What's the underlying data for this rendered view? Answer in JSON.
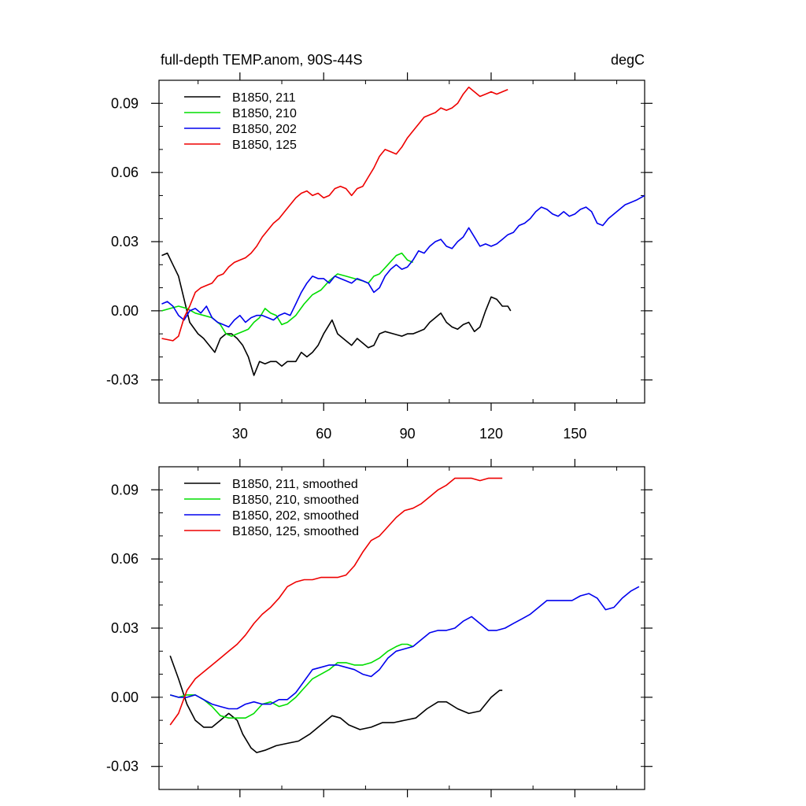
{
  "chart_data": [
    {
      "type": "line",
      "title": "full-depth TEMP.anom, 90S-44S",
      "units": "degC",
      "xlim": [
        1,
        175
      ],
      "ylim": [
        -0.04,
        0.1
      ],
      "xticks": [
        30,
        60,
        90,
        120,
        150
      ],
      "xtick_labels": [
        "30",
        "60",
        "90",
        "120",
        "150"
      ],
      "yticks": [
        -0.03,
        0.0,
        0.03,
        0.06,
        0.09
      ],
      "ytick_labels": [
        "-0.03",
        "0.00",
        "0.03",
        "0.06",
        "0.09"
      ],
      "legend_position": "top-left",
      "series": [
        {
          "name": "B1850, 211",
          "color": "#000000",
          "x": [
            2,
            4,
            6,
            8,
            10,
            12,
            15,
            17,
            19,
            21,
            23,
            25,
            27,
            29,
            31,
            33,
            35,
            37,
            39,
            41,
            43,
            45,
            47,
            50,
            52,
            54,
            56,
            58,
            60,
            62,
            63,
            65,
            67,
            70,
            72,
            74,
            76,
            78,
            80,
            82,
            85,
            88,
            90,
            92,
            94,
            96,
            98,
            100,
            102,
            104,
            106,
            108,
            110,
            112,
            114,
            116,
            118,
            120,
            122,
            124,
            126,
            127
          ],
          "y": [
            0.024,
            0.025,
            0.02,
            0.015,
            0.005,
            -0.005,
            -0.01,
            -0.012,
            -0.015,
            -0.018,
            -0.012,
            -0.01,
            -0.01,
            -0.012,
            -0.015,
            -0.02,
            -0.028,
            -0.022,
            -0.023,
            -0.022,
            -0.022,
            -0.024,
            -0.022,
            -0.022,
            -0.018,
            -0.02,
            -0.018,
            -0.015,
            -0.01,
            -0.006,
            -0.004,
            -0.01,
            -0.012,
            -0.015,
            -0.012,
            -0.014,
            -0.016,
            -0.015,
            -0.01,
            -0.009,
            -0.01,
            -0.011,
            -0.01,
            -0.01,
            -0.009,
            -0.008,
            -0.005,
            -0.003,
            -0.001,
            -0.005,
            -0.007,
            -0.008,
            -0.006,
            -0.005,
            -0.009,
            -0.007,
            0.0,
            0.006,
            0.005,
            0.002,
            0.002,
            0.0
          ]
        },
        {
          "name": "B1850, 210",
          "color": "#00dd00",
          "x": [
            2,
            5,
            8,
            11,
            14,
            17,
            20,
            23,
            25,
            27,
            29,
            31,
            33,
            35,
            37,
            39,
            41,
            43,
            45,
            47,
            50,
            53,
            56,
            59,
            62,
            65,
            68,
            71,
            74,
            76,
            78,
            80,
            83,
            86,
            88,
            90,
            92
          ],
          "y": [
            0.0,
            0.001,
            0.002,
            0.001,
            -0.001,
            -0.002,
            -0.003,
            -0.006,
            -0.01,
            -0.011,
            -0.01,
            -0.009,
            -0.008,
            -0.005,
            -0.003,
            0.001,
            -0.001,
            -0.002,
            -0.006,
            -0.005,
            -0.002,
            0.003,
            0.007,
            0.009,
            0.013,
            0.016,
            0.015,
            0.014,
            0.013,
            0.012,
            0.015,
            0.016,
            0.02,
            0.024,
            0.025,
            0.022,
            0.021
          ]
        },
        {
          "name": "B1850, 202",
          "color": "#0000ee",
          "x": [
            2,
            4,
            6,
            8,
            10,
            12,
            14,
            16,
            18,
            20,
            22,
            24,
            26,
            28,
            30,
            32,
            34,
            36,
            38,
            40,
            42,
            44,
            46,
            48,
            50,
            52,
            54,
            56,
            58,
            60,
            62,
            64,
            66,
            68,
            70,
            72,
            74,
            76,
            78,
            80,
            82,
            84,
            86,
            88,
            90,
            92,
            94,
            96,
            98,
            100,
            102,
            104,
            106,
            108,
            110,
            112,
            114,
            116,
            118,
            120,
            122,
            124,
            126,
            128,
            130,
            132,
            134,
            136,
            138,
            140,
            142,
            144,
            146,
            148,
            150,
            152,
            154,
            156,
            158,
            160,
            162,
            164,
            166,
            168,
            170,
            172,
            175
          ],
          "y": [
            0.003,
            0.004,
            0.002,
            -0.002,
            -0.004,
            0.0,
            0.001,
            -0.001,
            0.002,
            -0.003,
            -0.005,
            -0.006,
            -0.007,
            -0.004,
            -0.002,
            -0.005,
            -0.003,
            -0.002,
            -0.002,
            -0.003,
            -0.004,
            -0.002,
            -0.001,
            -0.002,
            0.003,
            0.008,
            0.012,
            0.015,
            0.014,
            0.014,
            0.012,
            0.015,
            0.014,
            0.013,
            0.012,
            0.014,
            0.013,
            0.012,
            0.008,
            0.01,
            0.015,
            0.018,
            0.02,
            0.018,
            0.019,
            0.022,
            0.026,
            0.025,
            0.028,
            0.03,
            0.031,
            0.028,
            0.027,
            0.03,
            0.032,
            0.036,
            0.032,
            0.028,
            0.029,
            0.028,
            0.029,
            0.031,
            0.033,
            0.034,
            0.037,
            0.038,
            0.04,
            0.043,
            0.045,
            0.044,
            0.042,
            0.041,
            0.043,
            0.041,
            0.042,
            0.044,
            0.045,
            0.043,
            0.038,
            0.037,
            0.04,
            0.042,
            0.044,
            0.046,
            0.047,
            0.048,
            0.05
          ]
        },
        {
          "name": "B1850, 125",
          "color": "#ee0000",
          "x": [
            2,
            6,
            8,
            10,
            12,
            14,
            16,
            18,
            20,
            22,
            24,
            26,
            28,
            30,
            32,
            34,
            36,
            38,
            40,
            42,
            44,
            46,
            48,
            50,
            52,
            54,
            56,
            58,
            60,
            62,
            64,
            66,
            68,
            70,
            72,
            74,
            76,
            78,
            80,
            82,
            84,
            86,
            88,
            90,
            92,
            94,
            96,
            98,
            100,
            102,
            104,
            106,
            108,
            110,
            112,
            114,
            116,
            118,
            120,
            122,
            124,
            126
          ],
          "y": [
            -0.012,
            -0.013,
            -0.011,
            -0.003,
            0.002,
            0.008,
            0.01,
            0.011,
            0.012,
            0.015,
            0.016,
            0.019,
            0.021,
            0.022,
            0.023,
            0.025,
            0.028,
            0.032,
            0.035,
            0.038,
            0.04,
            0.043,
            0.046,
            0.049,
            0.051,
            0.052,
            0.05,
            0.051,
            0.049,
            0.05,
            0.053,
            0.054,
            0.053,
            0.05,
            0.053,
            0.054,
            0.058,
            0.062,
            0.067,
            0.07,
            0.069,
            0.068,
            0.071,
            0.075,
            0.078,
            0.081,
            0.084,
            0.085,
            0.086,
            0.088,
            0.087,
            0.088,
            0.09,
            0.094,
            0.097,
            0.095,
            0.093,
            0.094,
            0.095,
            0.094,
            0.095,
            0.096
          ]
        }
      ]
    },
    {
      "type": "line",
      "title": "",
      "units": "",
      "xlim": [
        1,
        175
      ],
      "ylim": [
        -0.04,
        0.1
      ],
      "xticks": [
        30,
        60,
        90,
        120,
        150
      ],
      "xtick_labels": [],
      "yticks": [
        -0.03,
        0.0,
        0.03,
        0.06,
        0.09
      ],
      "ytick_labels": [
        "-0.03",
        "0.00",
        "0.03",
        "0.06",
        "0.09"
      ],
      "legend_position": "top-left",
      "series": [
        {
          "name": "B1850, 211, smoothed",
          "color": "#000000",
          "x": [
            5,
            8,
            11,
            14,
            17,
            20,
            23,
            26,
            29,
            31,
            34,
            36,
            39,
            43,
            47,
            51,
            55,
            59,
            63,
            66,
            69,
            73,
            77,
            81,
            85,
            89,
            93,
            97,
            101,
            104,
            108,
            112,
            116,
            120,
            123,
            124
          ],
          "y": [
            0.018,
            0.008,
            -0.003,
            -0.01,
            -0.013,
            -0.013,
            -0.01,
            -0.007,
            -0.01,
            -0.016,
            -0.022,
            -0.024,
            -0.023,
            -0.021,
            -0.02,
            -0.019,
            -0.016,
            -0.012,
            -0.008,
            -0.009,
            -0.012,
            -0.014,
            -0.013,
            -0.011,
            -0.011,
            -0.01,
            -0.009,
            -0.005,
            -0.002,
            -0.002,
            -0.005,
            -0.007,
            -0.006,
            0.0,
            0.003,
            0.003
          ]
        },
        {
          "name": "B1850, 210, smoothed",
          "color": "#00dd00",
          "x": [
            5,
            8,
            11,
            14,
            17,
            20,
            23,
            26,
            29,
            32,
            35,
            38,
            41,
            44,
            47,
            50,
            53,
            56,
            59,
            62,
            65,
            68,
            71,
            74,
            77,
            80,
            83,
            86,
            88,
            90,
            92
          ],
          "y": [
            0.001,
            0.0,
            0.001,
            0.001,
            -0.001,
            -0.004,
            -0.008,
            -0.009,
            -0.009,
            -0.009,
            -0.007,
            -0.003,
            -0.002,
            -0.004,
            -0.003,
            0.0,
            0.004,
            0.008,
            0.01,
            0.012,
            0.015,
            0.015,
            0.014,
            0.014,
            0.015,
            0.017,
            0.02,
            0.022,
            0.023,
            0.023,
            0.022
          ]
        },
        {
          "name": "B1850, 202, smoothed",
          "color": "#0000ee",
          "x": [
            5,
            8,
            11,
            14,
            17,
            20,
            23,
            26,
            29,
            32,
            35,
            38,
            41,
            44,
            47,
            50,
            53,
            56,
            59,
            62,
            65,
            68,
            71,
            74,
            77,
            80,
            83,
            86,
            89,
            92,
            95,
            98,
            101,
            104,
            107,
            110,
            113,
            116,
            119,
            122,
            125,
            128,
            131,
            134,
            137,
            140,
            143,
            146,
            149,
            152,
            155,
            158,
            161,
            164,
            167,
            170,
            173
          ],
          "y": [
            0.001,
            0.0,
            0.0,
            0.001,
            -0.001,
            -0.003,
            -0.004,
            -0.005,
            -0.005,
            -0.003,
            -0.002,
            -0.003,
            -0.003,
            -0.001,
            -0.001,
            0.002,
            0.007,
            0.012,
            0.013,
            0.014,
            0.014,
            0.013,
            0.012,
            0.01,
            0.009,
            0.012,
            0.017,
            0.02,
            0.021,
            0.022,
            0.025,
            0.028,
            0.029,
            0.029,
            0.03,
            0.033,
            0.035,
            0.032,
            0.029,
            0.029,
            0.03,
            0.032,
            0.034,
            0.036,
            0.039,
            0.042,
            0.042,
            0.042,
            0.042,
            0.044,
            0.045,
            0.043,
            0.038,
            0.039,
            0.043,
            0.046,
            0.048
          ]
        },
        {
          "name": "B1850, 125, smoothed",
          "color": "#ee0000",
          "x": [
            5,
            8,
            11,
            14,
            17,
            20,
            23,
            26,
            29,
            32,
            35,
            38,
            41,
            44,
            47,
            50,
            53,
            56,
            59,
            62,
            65,
            68,
            71,
            74,
            77,
            80,
            83,
            86,
            89,
            92,
            95,
            98,
            101,
            104,
            107,
            110,
            113,
            116,
            119,
            122,
            124
          ],
          "y": [
            -0.012,
            -0.007,
            0.003,
            0.008,
            0.011,
            0.014,
            0.017,
            0.02,
            0.023,
            0.027,
            0.032,
            0.036,
            0.039,
            0.043,
            0.048,
            0.05,
            0.051,
            0.051,
            0.052,
            0.052,
            0.052,
            0.053,
            0.057,
            0.063,
            0.068,
            0.07,
            0.074,
            0.078,
            0.081,
            0.082,
            0.084,
            0.087,
            0.09,
            0.092,
            0.095,
            0.095,
            0.095,
            0.094,
            0.095,
            0.095,
            0.095
          ]
        }
      ]
    }
  ]
}
